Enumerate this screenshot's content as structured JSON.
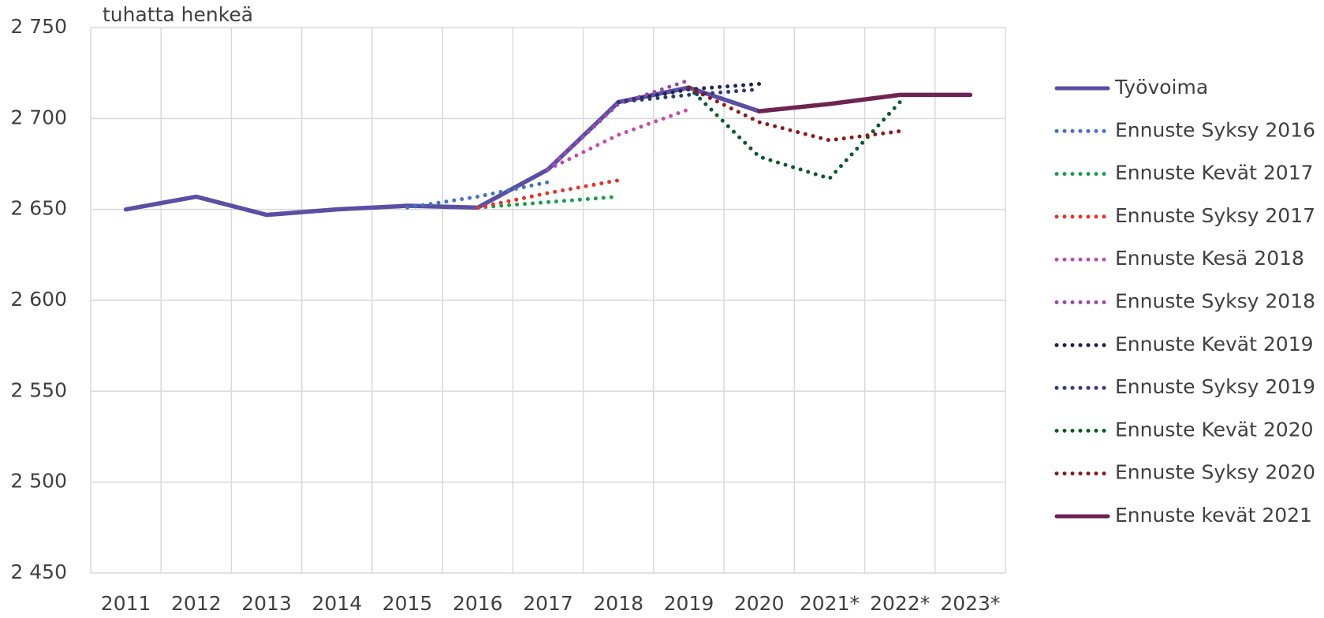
{
  "chart_data": {
    "type": "line",
    "y_label": "tuhatta henkeä",
    "categories": [
      "2011",
      "2012",
      "2013",
      "2014",
      "2015",
      "2016",
      "2017",
      "2018",
      "2019",
      "2020",
      "2021*",
      "2022*",
      "2023*"
    ],
    "ylim": [
      2450,
      2750
    ],
    "yticks": [
      {
        "value": 2450,
        "label": "2 450"
      },
      {
        "value": 2500,
        "label": "2 500"
      },
      {
        "value": 2550,
        "label": "2 550"
      },
      {
        "value": 2600,
        "label": "2 600"
      },
      {
        "value": 2650,
        "label": "2 650"
      },
      {
        "value": 2700,
        "label": "2 700"
      },
      {
        "value": 2750,
        "label": "2 750"
      }
    ],
    "grid": true,
    "legend": "right",
    "series": [
      {
        "name": "Työvoima",
        "color": "#5b4fa3",
        "style": "solid",
        "values": [
          2650,
          2657,
          2647,
          2650,
          2652,
          2651,
          2672,
          2709,
          2717,
          2704,
          null,
          null,
          null
        ]
      },
      {
        "name": "Ennuste Syksy 2016",
        "color": "#4472c4",
        "style": "dotted",
        "values": [
          null,
          null,
          null,
          null,
          2651,
          2657,
          2665,
          null,
          null,
          null,
          null,
          null,
          null
        ]
      },
      {
        "name": "Ennuste Kevät 2017",
        "color": "#1a9e4a",
        "style": "dotted",
        "values": [
          null,
          null,
          null,
          null,
          null,
          2651,
          2654,
          2657,
          null,
          null,
          null,
          null,
          null
        ]
      },
      {
        "name": "Ennuste Syksy 2017",
        "color": "#e8312a",
        "style": "dotted",
        "values": [
          null,
          null,
          null,
          null,
          null,
          2651,
          2659,
          2666,
          null,
          null,
          null,
          null,
          null
        ]
      },
      {
        "name": "Ennuste Kesä 2018",
        "color": "#c24ea8",
        "style": "dotted",
        "values": [
          null,
          null,
          null,
          null,
          null,
          null,
          2672,
          2691,
          2705,
          null,
          null,
          null,
          null
        ]
      },
      {
        "name": "Ennuste Syksy 2018",
        "color": "#9b4bb0",
        "style": "dotted",
        "values": [
          null,
          null,
          null,
          null,
          null,
          null,
          2672,
          2708,
          2721,
          null,
          null,
          null,
          null
        ]
      },
      {
        "name": "Ennuste Kevät 2019",
        "color": "#1f2552",
        "style": "dotted",
        "values": [
          null,
          null,
          null,
          null,
          null,
          null,
          null,
          2709,
          2716,
          2719,
          null,
          null,
          null
        ]
      },
      {
        "name": "Ennuste Syksy 2019",
        "color": "#2e3a78",
        "style": "dotted",
        "values": [
          null,
          null,
          null,
          null,
          null,
          null,
          null,
          2709,
          2713,
          2716,
          null,
          null,
          null
        ]
      },
      {
        "name": "Ennuste Kevät 2020",
        "color": "#0b5a2a",
        "style": "dotted",
        "values": [
          null,
          null,
          null,
          null,
          null,
          null,
          null,
          null,
          2717,
          2679,
          2667,
          2709,
          null
        ]
      },
      {
        "name": "Ennuste Syksy 2020",
        "color": "#8b1a1a",
        "style": "dotted",
        "values": [
          null,
          null,
          null,
          null,
          null,
          null,
          null,
          null,
          2717,
          2698,
          2688,
          2693,
          null
        ]
      },
      {
        "name": "Ennuste kevät 2021",
        "color": "#6e2452",
        "style": "solid",
        "values": [
          null,
          null,
          null,
          null,
          null,
          null,
          null,
          null,
          null,
          2704,
          2708,
          2713,
          2713
        ]
      }
    ]
  }
}
